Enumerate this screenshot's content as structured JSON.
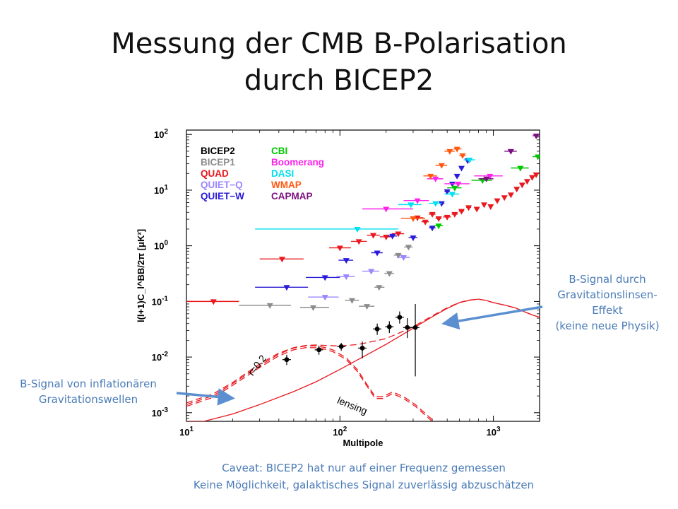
{
  "slide": {
    "title_line1": "Messung der CMB B-Polarisation",
    "title_line2": "durch BICEP2",
    "annotation_right": [
      "B-Signal durch",
      "Gravitationslinsen-",
      "Effekt",
      "(keine neue Physik)"
    ],
    "annotation_left": [
      "B-Signal von inflationären",
      "Gravitationswellen"
    ],
    "caveat": [
      "Caveat: BICEP2 hat nur auf einer Frequenz gemessen",
      "Keine Möglichkeit, galaktisches Signal zuverlässig abzuschätzen"
    ],
    "colors": {
      "annotation": "#4a7bb7",
      "arrow": "#5b8fd0",
      "theory": "#e8191f"
    }
  },
  "chart_data": {
    "type": "scatter",
    "title": "",
    "xlabel": "Multipole",
    "ylabel": "l(l+1)C_l^BB/2π [μK²]",
    "xscale": "log",
    "yscale": "log",
    "xlim": [
      10,
      2000
    ],
    "ylim": [
      0.0007,
      120
    ],
    "x_ticks": [
      {
        "v": 10,
        "m": "10",
        "e": "1"
      },
      {
        "v": 100,
        "m": "10",
        "e": "2"
      },
      {
        "v": 1000,
        "m": "10",
        "e": "3"
      }
    ],
    "y_ticks": [
      {
        "v": 0.001,
        "m": "10",
        "e": "-3"
      },
      {
        "v": 0.01,
        "m": "10",
        "e": "-2"
      },
      {
        "v": 0.1,
        "m": "10",
        "e": "-1"
      },
      {
        "v": 1,
        "m": "10",
        "e": "0"
      },
      {
        "v": 10,
        "m": "10",
        "e": "1"
      },
      {
        "v": 100,
        "m": "10",
        "e": "2"
      }
    ],
    "grid": false,
    "legend_position": "top-left",
    "legend": [
      {
        "name": "BICEP2",
        "color": "#000000"
      },
      {
        "name": "BICEP1",
        "color": "#8c8c8c"
      },
      {
        "name": "QUAD",
        "color": "#e8191f"
      },
      {
        "name": "QUIET−Q",
        "color": "#9b86ff"
      },
      {
        "name": "QUIET−W",
        "color": "#2a1bd6"
      },
      {
        "name": "CBI",
        "color": "#00c700"
      },
      {
        "name": "Boomerang",
        "color": "#ff22ee"
      },
      {
        "name": "DASI",
        "color": "#00e0f0"
      },
      {
        "name": "WMAP",
        "color": "#ff5a12"
      },
      {
        "name": "CAPMAP",
        "color": "#7a0f80"
      }
    ],
    "bicep2_points": [
      {
        "x": 45,
        "y": 0.009,
        "ylo": 0.0072,
        "yhi": 0.011
      },
      {
        "x": 73,
        "y": 0.0135,
        "ylo": 0.011,
        "yhi": 0.016
      },
      {
        "x": 102,
        "y": 0.0155,
        "ylo": 0.013,
        "yhi": 0.018
      },
      {
        "x": 140,
        "y": 0.0145,
        "ylo": 0.0095,
        "yhi": 0.019
      },
      {
        "x": 175,
        "y": 0.032,
        "ylo": 0.025,
        "yhi": 0.04
      },
      {
        "x": 210,
        "y": 0.035,
        "ylo": 0.027,
        "yhi": 0.044
      },
      {
        "x": 245,
        "y": 0.052,
        "ylo": 0.04,
        "yhi": 0.066
      },
      {
        "x": 275,
        "y": 0.034,
        "ylo": 0.022,
        "yhi": 0.05
      },
      {
        "x": 310,
        "y": 0.034,
        "ylo": 0.0045,
        "yhi": 0.09
      }
    ],
    "upper_limits": [
      {
        "s": "QUAD",
        "x": 15,
        "y": 0.1,
        "xlo": 10,
        "xhi": 22
      },
      {
        "s": "QUAD",
        "x": 42,
        "y": 0.58,
        "xlo": 30,
        "xhi": 58
      },
      {
        "s": "QUAD",
        "x": 100,
        "y": 0.92,
        "xlo": 85,
        "xhi": 118
      },
      {
        "s": "QUAD",
        "x": 133,
        "y": 1.2,
        "xlo": 118,
        "xhi": 150
      },
      {
        "s": "QUAD",
        "x": 165,
        "y": 1.55,
        "xlo": 150,
        "xhi": 182
      },
      {
        "s": "QUAD",
        "x": 200,
        "y": 1.45,
        "xlo": 182,
        "xhi": 218
      },
      {
        "s": "QUAD",
        "x": 240,
        "y": 1.65,
        "xlo": 218,
        "xhi": 262
      },
      {
        "s": "QUAD",
        "x": 320,
        "y": 3.2,
        "xlo": 290,
        "xhi": 350
      },
      {
        "s": "QUAD",
        "x": 360,
        "y": 2.7,
        "xlo": 340,
        "xhi": 380
      },
      {
        "s": "QUAD",
        "x": 400,
        "y": 3.7,
        "xlo": 380,
        "xhi": 420
      },
      {
        "s": "QUAD",
        "x": 440,
        "y": 3.1,
        "xlo": 420,
        "xhi": 460
      },
      {
        "s": "QUAD",
        "x": 500,
        "y": 3.3,
        "xlo": 470,
        "xhi": 530
      },
      {
        "s": "QUAD",
        "x": 560,
        "y": 3.7,
        "xlo": 535,
        "xhi": 585
      },
      {
        "s": "QUAD",
        "x": 620,
        "y": 4.2,
        "xlo": 595,
        "xhi": 645
      },
      {
        "s": "QUAD",
        "x": 690,
        "y": 4.9,
        "xlo": 665,
        "xhi": 715
      },
      {
        "s": "QUAD",
        "x": 780,
        "y": 4.6,
        "xlo": 755,
        "xhi": 805
      },
      {
        "s": "QUAD",
        "x": 870,
        "y": 5.5,
        "xlo": 845,
        "xhi": 895
      },
      {
        "s": "QUAD",
        "x": 960,
        "y": 5.1,
        "xlo": 935,
        "xhi": 985
      },
      {
        "s": "QUAD",
        "x": 1060,
        "y": 6.5,
        "xlo": 1030,
        "xhi": 1090
      },
      {
        "s": "QUAD",
        "x": 1180,
        "y": 7.4,
        "xlo": 1150,
        "xhi": 1210
      },
      {
        "s": "QUAD",
        "x": 1300,
        "y": 8.3,
        "xlo": 1270,
        "xhi": 1330
      },
      {
        "s": "QUAD",
        "x": 1420,
        "y": 10.5,
        "xlo": 1390,
        "xhi": 1450
      },
      {
        "s": "QUAD",
        "x": 1540,
        "y": 12.5,
        "xlo": 1510,
        "xhi": 1570
      },
      {
        "s": "QUAD",
        "x": 1660,
        "y": 14.5,
        "xlo": 1630,
        "xhi": 1690
      },
      {
        "s": "QUAD",
        "x": 1790,
        "y": 17,
        "xlo": 1760,
        "xhi": 1820
      },
      {
        "s": "QUAD",
        "x": 1900,
        "y": 19,
        "xlo": 1875,
        "xhi": 1925
      },
      {
        "s": "BICEP1",
        "x": 35,
        "y": 0.085,
        "xlo": 22,
        "xhi": 48
      },
      {
        "s": "BICEP1",
        "x": 67,
        "y": 0.078,
        "xlo": 55,
        "xhi": 85
      },
      {
        "s": "BICEP1",
        "x": 120,
        "y": 0.105,
        "xlo": 108,
        "xhi": 133
      },
      {
        "s": "BICEP1",
        "x": 150,
        "y": 0.082,
        "xlo": 133,
        "xhi": 168
      },
      {
        "s": "BICEP1",
        "x": 180,
        "y": 0.18,
        "xlo": 168,
        "xhi": 195
      },
      {
        "s": "BICEP1",
        "x": 210,
        "y": 0.32,
        "xlo": 195,
        "xhi": 225
      },
      {
        "s": "BICEP1",
        "x": 240,
        "y": 0.68,
        "xlo": 225,
        "xhi": 255
      },
      {
        "s": "BICEP1",
        "x": 280,
        "y": 0.95,
        "xlo": 262,
        "xhi": 298
      },
      {
        "s": "QUIET-Q",
        "x": 80,
        "y": 0.12,
        "xlo": 62,
        "xhi": 98
      },
      {
        "s": "QUIET-Q",
        "x": 110,
        "y": 0.28,
        "xlo": 95,
        "xhi": 125
      },
      {
        "s": "QUIET-Q",
        "x": 160,
        "y": 0.35,
        "xlo": 140,
        "xhi": 180
      },
      {
        "s": "QUIET-Q",
        "x": 260,
        "y": 0.62,
        "xlo": 235,
        "xhi": 285
      },
      {
        "s": "QUIET-W",
        "x": 45,
        "y": 0.18,
        "xlo": 28,
        "xhi": 62
      },
      {
        "s": "QUIET-W",
        "x": 80,
        "y": 0.27,
        "xlo": 60,
        "xhi": 100
      },
      {
        "s": "QUIET-W",
        "x": 110,
        "y": 0.55,
        "xlo": 98,
        "xhi": 122
      },
      {
        "s": "QUIET-W",
        "x": 175,
        "y": 0.75,
        "xlo": 160,
        "xhi": 190
      },
      {
        "s": "QUIET-W",
        "x": 220,
        "y": 1.5,
        "xlo": 205,
        "xhi": 235
      },
      {
        "s": "QUIET-W",
        "x": 300,
        "y": 1.4,
        "xlo": 280,
        "xhi": 320
      },
      {
        "s": "QUIET-W",
        "x": 400,
        "y": 2.1,
        "xlo": 380,
        "xhi": 420
      },
      {
        "s": "QUIET-W",
        "x": 460,
        "y": 5.8,
        "xlo": 440,
        "xhi": 480
      },
      {
        "s": "QUIET-W",
        "x": 500,
        "y": 9.5,
        "xlo": 480,
        "xhi": 520
      },
      {
        "s": "QUIET-W",
        "x": 540,
        "y": 13,
        "xlo": 520,
        "xhi": 560
      },
      {
        "s": "QUIET-W",
        "x": 580,
        "y": 18,
        "xlo": 560,
        "xhi": 600
      },
      {
        "s": "QUIET-W",
        "x": 620,
        "y": 25,
        "xlo": 600,
        "xhi": 640
      },
      {
        "s": "QUIET-W",
        "x": 680,
        "y": 34,
        "xlo": 660,
        "xhi": 700
      },
      {
        "s": "CBI",
        "x": 440,
        "y": 2.3,
        "xlo": 410,
        "xhi": 470
      },
      {
        "s": "CBI",
        "x": 560,
        "y": 11,
        "xlo": 500,
        "xhi": 620
      },
      {
        "s": "CBI",
        "x": 850,
        "y": 15,
        "xlo": 720,
        "xhi": 980
      },
      {
        "s": "CBI",
        "x": 1500,
        "y": 25,
        "xlo": 1300,
        "xhi": 1700
      },
      {
        "s": "CBI",
        "x": 1950,
        "y": 40,
        "xlo": 1800,
        "xhi": 2000
      },
      {
        "s": "Boomerang",
        "x": 200,
        "y": 4.6,
        "xlo": 140,
        "xhi": 300
      },
      {
        "s": "Boomerang",
        "x": 320,
        "y": 6.5,
        "xlo": 260,
        "xhi": 380
      },
      {
        "s": "Boomerang",
        "x": 420,
        "y": 16,
        "xlo": 370,
        "xhi": 470
      },
      {
        "s": "Boomerang",
        "x": 590,
        "y": 13,
        "xlo": 480,
        "xhi": 700
      },
      {
        "s": "Boomerang",
        "x": 950,
        "y": 18,
        "xlo": 750,
        "xhi": 1150
      },
      {
        "s": "DASI",
        "x": 130,
        "y": 2.0,
        "xlo": 28,
        "xhi": 240
      },
      {
        "s": "DASI",
        "x": 290,
        "y": 5.5,
        "xlo": 240,
        "xhi": 340
      },
      {
        "s": "DASI",
        "x": 420,
        "y": 5.8,
        "xlo": 380,
        "xhi": 460
      },
      {
        "s": "DASI",
        "x": 540,
        "y": 8.5,
        "xlo": 480,
        "xhi": 600
      },
      {
        "s": "DASI",
        "x": 700,
        "y": 35,
        "xlo": 640,
        "xhi": 760
      },
      {
        "s": "WMAP",
        "x": 300,
        "y": 3.1,
        "xlo": 250,
        "xhi": 360
      },
      {
        "s": "WMAP",
        "x": 390,
        "y": 18,
        "xlo": 350,
        "xhi": 430
      },
      {
        "s": "WMAP",
        "x": 460,
        "y": 28,
        "xlo": 420,
        "xhi": 500
      },
      {
        "s": "WMAP",
        "x": 520,
        "y": 50,
        "xlo": 480,
        "xhi": 560
      },
      {
        "s": "WMAP",
        "x": 580,
        "y": 55,
        "xlo": 550,
        "xhi": 620
      },
      {
        "s": "WMAP",
        "x": 630,
        "y": 42,
        "xlo": 600,
        "xhi": 660
      },
      {
        "s": "CAPMAP",
        "x": 900,
        "y": 16,
        "xlo": 800,
        "xhi": 1000
      },
      {
        "s": "CAPMAP",
        "x": 1300,
        "y": 50,
        "xlo": 1180,
        "xhi": 1420
      },
      {
        "s": "CAPMAP",
        "x": 1900,
        "y": 95,
        "xlo": 1800,
        "xhi": 2000
      }
    ],
    "theory_curves": [
      {
        "label": "r=0.2",
        "style": "dashed-double",
        "points": [
          [
            10,
            0.0013
          ],
          [
            15,
            0.0019
          ],
          [
            20,
            0.0031
          ],
          [
            30,
            0.0065
          ],
          [
            40,
            0.0105
          ],
          [
            50,
            0.0135
          ],
          [
            60,
            0.0148
          ],
          [
            70,
            0.0147
          ],
          [
            80,
            0.0138
          ],
          [
            90,
            0.0125
          ],
          [
            110,
            0.009
          ],
          [
            130,
            0.0055
          ],
          [
            150,
            0.003
          ],
          [
            170,
            0.0018
          ],
          [
            190,
            0.0018
          ],
          [
            220,
            0.0022
          ],
          [
            260,
            0.0018
          ],
          [
            310,
            0.0013
          ],
          [
            360,
            0.0009
          ],
          [
            400,
            0.0007
          ]
        ]
      },
      {
        "label": "lensing",
        "style": "solid",
        "points": [
          [
            10,
            0.0007
          ],
          [
            13,
            0.0007
          ],
          [
            20,
            0.00095
          ],
          [
            30,
            0.0014
          ],
          [
            50,
            0.0024
          ],
          [
            70,
            0.0036
          ],
          [
            100,
            0.006
          ],
          [
            150,
            0.011
          ],
          [
            200,
            0.017
          ],
          [
            300,
            0.033
          ],
          [
            400,
            0.053
          ],
          [
            500,
            0.075
          ],
          [
            600,
            0.095
          ],
          [
            700,
            0.105
          ],
          [
            800,
            0.11
          ],
          [
            900,
            0.104
          ],
          [
            1000,
            0.095
          ],
          [
            1200,
            0.085
          ],
          [
            1400,
            0.076
          ],
          [
            1600,
            0.065
          ],
          [
            1800,
            0.057
          ],
          [
            2000,
            0.052
          ]
        ]
      },
      {
        "label": "",
        "style": "dashed",
        "points": [
          [
            10,
            0.0015
          ],
          [
            15,
            0.0022
          ],
          [
            20,
            0.0035
          ],
          [
            30,
            0.0075
          ],
          [
            40,
            0.0118
          ],
          [
            50,
            0.0148
          ],
          [
            60,
            0.0162
          ],
          [
            70,
            0.0165
          ],
          [
            80,
            0.0162
          ],
          [
            100,
            0.0158
          ],
          [
            130,
            0.0168
          ],
          [
            170,
            0.0195
          ],
          [
            200,
            0.0215
          ],
          [
            250,
            0.028
          ],
          [
            300,
            0.035
          ],
          [
            400,
            0.055
          ],
          [
            500,
            0.077
          ],
          [
            600,
            0.096
          ],
          [
            700,
            0.106
          ],
          [
            800,
            0.11
          ],
          [
            900,
            0.104
          ],
          [
            1000,
            0.095
          ],
          [
            1200,
            0.085
          ],
          [
            1400,
            0.076
          ],
          [
            1600,
            0.065
          ],
          [
            1800,
            0.057
          ],
          [
            2000,
            0.052
          ]
        ]
      }
    ]
  }
}
